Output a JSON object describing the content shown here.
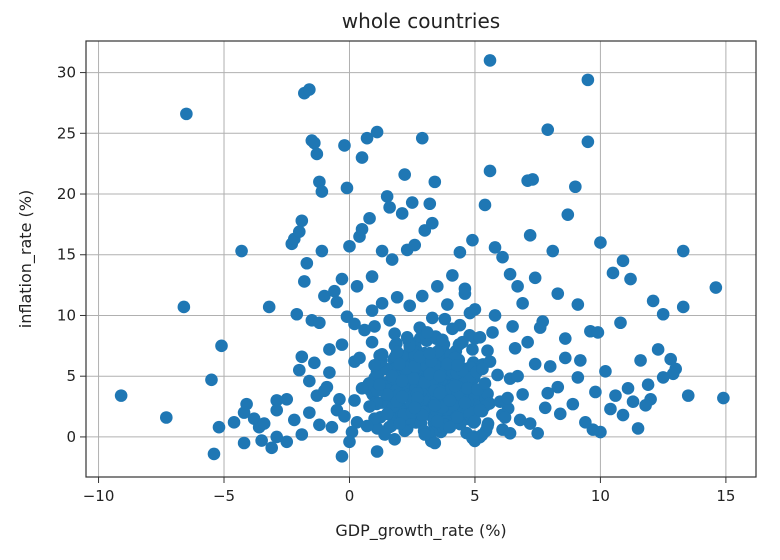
{
  "chart_data": {
    "type": "scatter",
    "title": "whole countries",
    "xlabel": "GDP_growth_rate (%)",
    "ylabel": "inflation_rate (%)",
    "xlim": [
      -10.5,
      16.2
    ],
    "ylim": [
      -3.3,
      32.6
    ],
    "xticks": [
      -10,
      -5,
      0,
      5,
      10,
      15
    ],
    "yticks": [
      0,
      5,
      10,
      15,
      20,
      25,
      30
    ],
    "grid": true,
    "marker_color": "#1f77b4",
    "series": [
      {
        "name": "countries",
        "points": [
          [
            -9.1,
            3.4
          ],
          [
            -7.3,
            1.6
          ],
          [
            -6.5,
            26.6
          ],
          [
            -6.6,
            10.7
          ],
          [
            -5.5,
            4.7
          ],
          [
            -5.4,
            -1.4
          ],
          [
            -5.1,
            7.5
          ],
          [
            -5.2,
            0.8
          ],
          [
            -4.6,
            1.2
          ],
          [
            -4.3,
            15.3
          ],
          [
            -4.2,
            2.0
          ],
          [
            -4.1,
            2.7
          ],
          [
            -4.2,
            -0.5
          ],
          [
            -3.8,
            1.5
          ],
          [
            -3.6,
            0.8
          ],
          [
            -3.5,
            -0.3
          ],
          [
            -3.2,
            10.7
          ],
          [
            -3.1,
            -0.9
          ],
          [
            -2.9,
            3.0
          ],
          [
            -2.9,
            2.2
          ],
          [
            -2.9,
            0.0
          ],
          [
            -2.5,
            -0.4
          ],
          [
            -2.3,
            15.9
          ],
          [
            -2.2,
            16.3
          ],
          [
            -2.1,
            10.1
          ],
          [
            -2.0,
            16.9
          ],
          [
            -1.9,
            17.8
          ],
          [
            -2.0,
            5.5
          ],
          [
            -1.9,
            6.6
          ],
          [
            -1.8,
            12.8
          ],
          [
            -1.9,
            0.2
          ],
          [
            -1.8,
            28.3
          ],
          [
            -1.6,
            28.6
          ],
          [
            -1.7,
            14.3
          ],
          [
            -1.6,
            2.0
          ],
          [
            -1.5,
            24.4
          ],
          [
            -1.4,
            24.2
          ],
          [
            -1.3,
            23.3
          ],
          [
            -1.2,
            21.0
          ],
          [
            -1.1,
            20.2
          ],
          [
            -1.1,
            15.3
          ],
          [
            -1.5,
            9.6
          ],
          [
            -1.2,
            9.4
          ],
          [
            -1.4,
            6.1
          ],
          [
            -1.3,
            3.4
          ],
          [
            -1.0,
            11.6
          ],
          [
            -0.8,
            7.2
          ],
          [
            -0.9,
            4.1
          ],
          [
            -0.7,
            0.8
          ],
          [
            -0.6,
            12.0
          ],
          [
            -0.5,
            11.1
          ],
          [
            -0.4,
            3.1
          ],
          [
            -0.3,
            13.0
          ],
          [
            -0.3,
            -1.6
          ],
          [
            -0.2,
            24.0
          ],
          [
            -0.1,
            20.5
          ],
          [
            0.0,
            15.7
          ],
          [
            -0.1,
            9.9
          ],
          [
            0.2,
            6.2
          ],
          [
            0.3,
            12.4
          ],
          [
            0.4,
            16.5
          ],
          [
            0.5,
            23.0
          ],
          [
            0.5,
            17.1
          ],
          [
            0.7,
            24.6
          ],
          [
            0.8,
            18.0
          ],
          [
            1.1,
            25.1
          ],
          [
            0.9,
            13.2
          ],
          [
            1.0,
            9.1
          ],
          [
            1.1,
            -1.2
          ],
          [
            1.3,
            15.3
          ],
          [
            1.5,
            19.8
          ],
          [
            1.6,
            18.9
          ],
          [
            1.7,
            14.6
          ],
          [
            1.9,
            11.5
          ],
          [
            2.1,
            18.4
          ],
          [
            2.2,
            21.6
          ],
          [
            2.3,
            15.4
          ],
          [
            2.5,
            19.3
          ],
          [
            2.6,
            15.8
          ],
          [
            2.9,
            24.6
          ],
          [
            3.0,
            17.0
          ],
          [
            3.2,
            19.2
          ],
          [
            3.3,
            17.6
          ],
          [
            3.4,
            21.0
          ],
          [
            3.5,
            12.4
          ],
          [
            3.8,
            9.7
          ],
          [
            4.1,
            13.3
          ],
          [
            4.4,
            15.2
          ],
          [
            4.6,
            11.8
          ],
          [
            4.9,
            16.2
          ],
          [
            5.0,
            10.5
          ],
          [
            5.4,
            19.1
          ],
          [
            5.6,
            31.0
          ],
          [
            5.6,
            21.9
          ],
          [
            5.8,
            15.6
          ],
          [
            6.1,
            14.8
          ],
          [
            6.4,
            13.4
          ],
          [
            6.7,
            12.4
          ],
          [
            7.1,
            21.1
          ],
          [
            7.3,
            21.2
          ],
          [
            7.2,
            16.6
          ],
          [
            7.4,
            13.1
          ],
          [
            7.7,
            9.5
          ],
          [
            7.9,
            25.3
          ],
          [
            8.1,
            15.3
          ],
          [
            8.3,
            11.8
          ],
          [
            8.7,
            18.3
          ],
          [
            9.0,
            20.6
          ],
          [
            9.1,
            10.9
          ],
          [
            9.5,
            29.4
          ],
          [
            9.5,
            24.3
          ],
          [
            9.6,
            8.7
          ],
          [
            9.9,
            8.6
          ],
          [
            10.0,
            16.0
          ],
          [
            10.5,
            13.5
          ],
          [
            10.8,
            9.4
          ],
          [
            10.9,
            14.5
          ],
          [
            11.2,
            13.0
          ],
          [
            11.6,
            6.3
          ],
          [
            11.9,
            4.3
          ],
          [
            12.1,
            11.2
          ],
          [
            12.3,
            7.2
          ],
          [
            12.5,
            10.1
          ],
          [
            12.8,
            6.4
          ],
          [
            13.0,
            5.6
          ],
          [
            13.3,
            15.3
          ],
          [
            13.3,
            10.7
          ],
          [
            13.5,
            3.4
          ],
          [
            14.6,
            12.3
          ],
          [
            14.9,
            3.2
          ],
          [
            12.9,
            5.2
          ],
          [
            12.5,
            4.9
          ],
          [
            12.0,
            3.1
          ],
          [
            11.8,
            2.6
          ],
          [
            11.5,
            0.7
          ],
          [
            11.3,
            2.9
          ],
          [
            10.9,
            1.8
          ],
          [
            10.4,
            2.3
          ],
          [
            10.0,
            0.4
          ],
          [
            9.7,
            0.6
          ],
          [
            9.4,
            1.2
          ],
          [
            9.1,
            4.9
          ],
          [
            8.9,
            2.7
          ],
          [
            8.6,
            6.5
          ],
          [
            8.3,
            4.1
          ],
          [
            8.0,
            5.8
          ],
          [
            7.8,
            2.4
          ],
          [
            7.5,
            0.3
          ],
          [
            7.2,
            1.1
          ],
          [
            6.9,
            3.5
          ],
          [
            6.6,
            7.3
          ],
          [
            6.2,
            1.6
          ],
          [
            5.9,
            5.1
          ],
          [
            5.5,
            0.9
          ],
          [
            5.2,
            8.2
          ],
          [
            4.8,
            2.0
          ],
          [
            1.0,
            1.5
          ],
          [
            1.5,
            3.5
          ],
          [
            2.0,
            6.0
          ],
          [
            2.5,
            2.0
          ],
          [
            3.0,
            4.5
          ],
          [
            3.5,
            7.0
          ],
          [
            4.0,
            3.0
          ],
          [
            4.5,
            5.5
          ],
          [
            0.5,
            4.0
          ],
          [
            1.8,
            8.5
          ],
          [
            2.8,
            9.0
          ],
          [
            3.8,
            1.0
          ],
          [
            4.2,
            6.5
          ],
          [
            0.8,
            2.5
          ],
          [
            2.2,
            0.5
          ],
          [
            3.2,
            5.2
          ],
          [
            1.3,
            6.8
          ],
          [
            2.7,
            3.2
          ],
          [
            3.7,
            8.0
          ],
          [
            4.7,
            4.0
          ],
          [
            0.3,
            1.2
          ],
          [
            1.7,
            5.0
          ],
          [
            2.4,
            7.5
          ],
          [
            3.4,
            2.6
          ],
          [
            4.4,
            9.2
          ],
          [
            0.9,
            7.8
          ],
          [
            2.9,
            1.8
          ],
          [
            3.9,
            6.0
          ],
          [
            1.1,
            3.8
          ],
          [
            2.1,
            4.6
          ],
          [
            4.9,
            7.2
          ],
          [
            0.6,
            8.8
          ],
          [
            1.4,
            0.2
          ],
          [
            3.1,
            8.6
          ],
          [
            4.3,
            1.6
          ],
          [
            5.1,
            3.9
          ],
          [
            5.6,
            6.2
          ],
          [
            6.0,
            2.9
          ],
          [
            6.4,
            4.8
          ],
          [
            6.8,
            1.4
          ],
          [
            7.4,
            6.0
          ],
          [
            7.9,
            3.6
          ],
          [
            -0.5,
            2.2
          ],
          [
            -0.8,
            5.3
          ],
          [
            -1.2,
            1.0
          ],
          [
            0.1,
            0.4
          ],
          [
            1.9,
            2.9
          ],
          [
            2.6,
            5.8
          ],
          [
            3.6,
            3.6
          ],
          [
            4.6,
            2.8
          ],
          [
            5.3,
            5.6
          ],
          [
            6.3,
            3.2
          ],
          [
            0.4,
            6.5
          ],
          [
            1.6,
            9.6
          ],
          [
            2.3,
            8.2
          ],
          [
            3.3,
            9.8
          ],
          [
            4.1,
            8.9
          ],
          [
            5.7,
            8.6
          ],
          [
            6.5,
            9.1
          ],
          [
            0.2,
            3.0
          ],
          [
            1.2,
            4.3
          ],
          [
            2.0,
            1.1
          ],
          [
            3.0,
            0.2
          ],
          [
            4.0,
            0.8
          ],
          [
            5.0,
            1.3
          ],
          [
            6.1,
            0.6
          ],
          [
            0.7,
            0.9
          ],
          [
            1.9,
            7.0
          ],
          [
            2.8,
            6.6
          ],
          [
            3.6,
            5.0
          ],
          [
            4.5,
            7.8
          ],
          [
            5.4,
            4.4
          ],
          [
            -1.0,
            3.8
          ],
          [
            -1.6,
            4.6
          ],
          [
            -0.3,
            7.6
          ],
          [
            0.9,
            10.4
          ],
          [
            2.4,
            10.8
          ],
          [
            3.9,
            10.9
          ],
          [
            4.8,
            10.2
          ],
          [
            1.5,
            1.9
          ],
          [
            2.6,
            2.4
          ],
          [
            3.5,
            1.3
          ],
          [
            4.2,
            4.2
          ],
          [
            5.2,
            2.2
          ],
          [
            6.7,
            5.0
          ],
          [
            7.1,
            7.8
          ],
          [
            8.4,
            1.9
          ],
          [
            1.0,
            5.9
          ],
          [
            2.1,
            3.3
          ],
          [
            3.2,
            6.9
          ],
          [
            4.3,
            5.9
          ],
          [
            5.5,
            7.1
          ],
          [
            0.2,
            9.3
          ],
          [
            1.3,
            11.0
          ],
          [
            2.9,
            11.6
          ],
          [
            4.6,
            12.2
          ],
          [
            5.8,
            10.0
          ],
          [
            6.9,
            11.0
          ],
          [
            7.6,
            9.0
          ],
          [
            8.6,
            8.1
          ],
          [
            9.2,
            6.3
          ],
          [
            9.8,
            3.7
          ],
          [
            10.2,
            5.4
          ],
          [
            10.6,
            3.4
          ],
          [
            11.1,
            4.0
          ],
          [
            0.0,
            -0.4
          ],
          [
            1.8,
            -0.2
          ],
          [
            3.4,
            -0.5
          ],
          [
            4.9,
            -0.1
          ],
          [
            6.4,
            0.3
          ],
          [
            -2.5,
            3.1
          ],
          [
            -2.2,
            1.4
          ],
          [
            -3.4,
            1.1
          ],
          [
            -0.2,
            1.7
          ]
        ]
      }
    ]
  }
}
